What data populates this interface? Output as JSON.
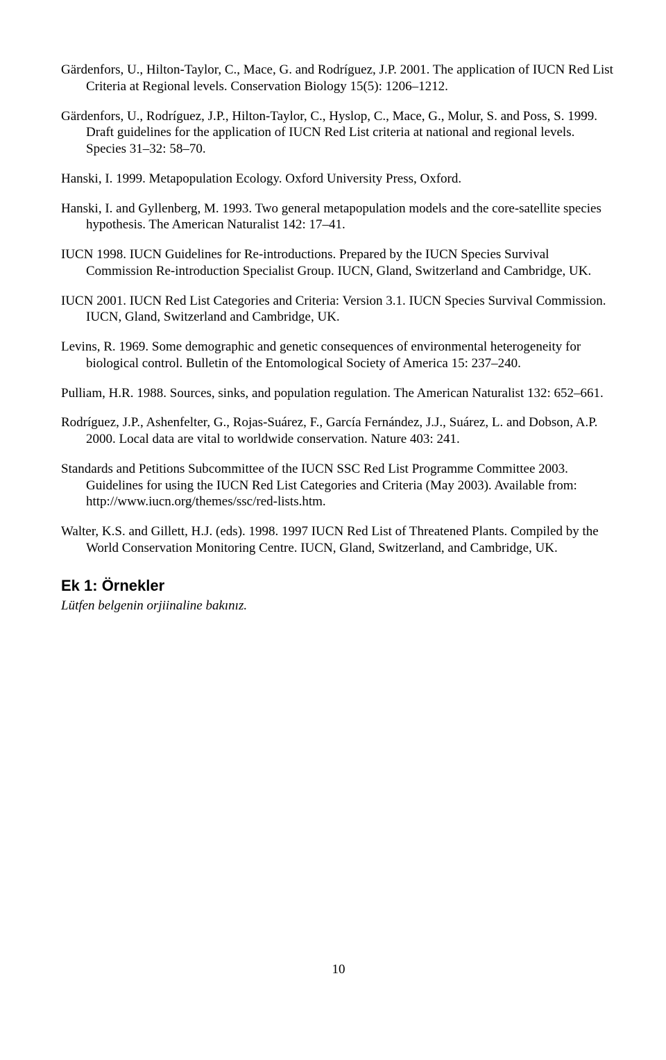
{
  "refs": [
    "Gärdenfors, U., Hilton-Taylor, C., Mace, G. and Rodríguez, J.P. 2001. The application of IUCN Red List Criteria at Regional levels. Conservation Biology 15(5): 1206–1212.",
    "Gärdenfors, U., Rodríguez, J.P., Hilton-Taylor, C., Hyslop, C., Mace, G., Molur, S. and Poss, S. 1999. Draft guidelines for the application of IUCN Red List criteria at national and regional levels. Species 31–32: 58–70.",
    "Hanski, I. 1999. Metapopulation Ecology. Oxford University Press, Oxford.",
    "Hanski, I. and Gyllenberg, M. 1993. Two general metapopulation models and the core-satellite species hypothesis. The American Naturalist 142: 17–41.",
    "IUCN 1998. IUCN Guidelines for Re-introductions. Prepared by the IUCN Species Survival Commission Re-introduction Specialist Group. IUCN, Gland, Switzerland and Cambridge, UK.",
    "IUCN 2001. IUCN Red List Categories and Criteria: Version 3.1. IUCN Species Survival Commission. IUCN, Gland, Switzerland and Cambridge, UK.",
    "Levins, R. 1969. Some demographic and genetic consequences of environmental heterogeneity for biological control. Bulletin of the Entomological Society of America 15: 237–240.",
    "Pulliam, H.R. 1988. Sources, sinks, and population regulation. The American Naturalist 132: 652–661.",
    "Rodríguez, J.P., Ashenfelter, G., Rojas-Suárez, F., García Fernández, J.J., Suárez, L. and Dobson, A.P. 2000. Local data are vital to worldwide conservation. Nature 403: 241.",
    "Standards and Petitions Subcommittee of the IUCN SSC Red List Programme Committee 2003. Guidelines for using the IUCN Red List Categories and Criteria (May 2003). Available from: http://www.iucn.org/themes/ssc/red-lists.htm.",
    "Walter, K.S. and Gillett, H.J. (eds). 1998. 1997 IUCN Red List of Threatened Plants. Compiled by the World Conservation Monitoring Centre. IUCN, Gland, Switzerland, and Cambridge, UK."
  ],
  "appendix": {
    "title": "Ek 1: Örnekler",
    "note": "Lütfen belgenin orjiinaline bakınız."
  },
  "pageNumber": "10"
}
